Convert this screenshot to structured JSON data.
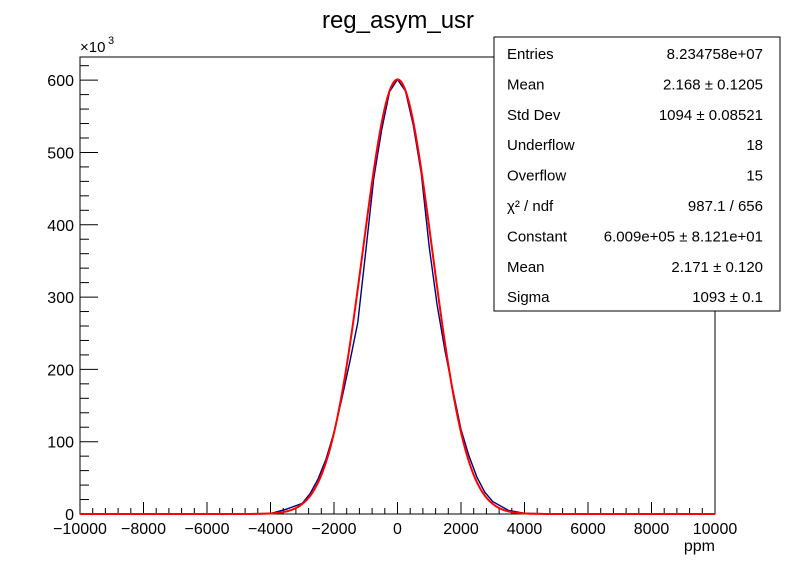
{
  "chart_data": {
    "type": "line",
    "title": "reg_asym_usr",
    "xlabel": "ppm",
    "ylabel": "",
    "y_multiplier_label": "×10",
    "y_multiplier_exp": "3",
    "xlim": [
      -10000,
      10000
    ],
    "ylim": [
      0,
      632
    ],
    "x_ticks": [
      -10000,
      -8000,
      -6000,
      -4000,
      -2000,
      0,
      2000,
      4000,
      6000,
      8000,
      10000
    ],
    "x_tick_labels": [
      "−10000",
      "−8000",
      "−6000",
      "−4000",
      "−2000",
      "0",
      "2000",
      "4000",
      "6000",
      "8000",
      "10000"
    ],
    "y_ticks": [
      0,
      100,
      200,
      300,
      400,
      500,
      600
    ],
    "y_tick_labels": [
      "0",
      "100",
      "200",
      "300",
      "400",
      "500",
      "600"
    ],
    "series": [
      {
        "kind": "histogram",
        "color": "#000080",
        "x": [
          -10000,
          -9000,
          -8000,
          -7000,
          -6000,
          -5000,
          -4000,
          -3500,
          -3000,
          -2750,
          -2500,
          -2250,
          -2000,
          -1750,
          -1500,
          -1250,
          -1000,
          -750,
          -500,
          -250,
          0,
          250,
          500,
          750,
          1000,
          1250,
          1500,
          1750,
          2000,
          2250,
          2500,
          2750,
          3000,
          3500,
          4000,
          5000,
          6000,
          7000,
          8000,
          9000,
          10000
        ],
        "values": [
          0,
          0,
          0,
          0,
          0,
          0,
          0.7,
          6.7,
          14.6,
          28.4,
          48.7,
          76.0,
          113.0,
          160.1,
          210.8,
          265.0,
          363.0,
          463.6,
          531.0,
          584.0,
          601.0,
          585.0,
          537.0,
          470.5,
          369.0,
          288.5,
          224.8,
          170.0,
          117.0,
          80.5,
          51.1,
          30.1,
          17.2,
          4.9,
          1.0,
          0,
          0,
          0,
          0,
          0,
          0
        ]
      },
      {
        "kind": "gaussian-fit",
        "color": "#ff0000",
        "constant": 600.9,
        "mean": 2.171,
        "sigma": 1093
      }
    ]
  },
  "stats": {
    "rows": [
      {
        "label": "Entries",
        "value": "8.234758e+07"
      },
      {
        "label": "Mean",
        "value": "2.168  ± 0.1205"
      },
      {
        "label": "Std Dev",
        "value": "1094  ± 0.08521"
      },
      {
        "label": "Underflow",
        "value": "18"
      },
      {
        "label": "Overflow",
        "value": "15"
      },
      {
        "label": "χ² / ndf",
        "value": "987.1 / 656"
      },
      {
        "label": "Constant",
        "value": "6.009e+05  ± 8.121e+01"
      },
      {
        "label": "Mean",
        "value": "2.171 ± 0.120"
      },
      {
        "label": "Sigma",
        "value": "1093  ± 0.1"
      }
    ]
  }
}
